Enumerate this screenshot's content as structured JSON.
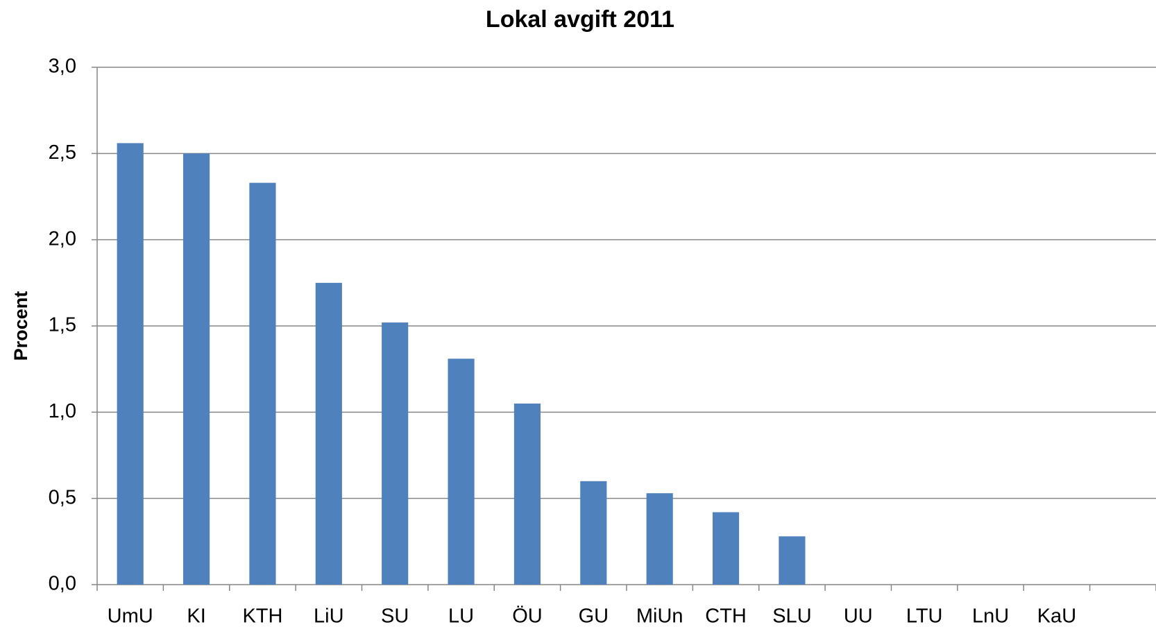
{
  "chart_data": {
    "type": "bar",
    "title": "Lokal avgift 2011",
    "y_label": "Procent",
    "categories": [
      "UmU",
      "KI",
      "KTH",
      "LiU",
      "SU",
      "LU",
      "ÖU",
      "GU",
      "MiUn",
      "CTH",
      "SLU",
      "UU",
      "LTU",
      "LnU",
      "KaU",
      null
    ],
    "values": [
      2.56,
      2.5,
      2.33,
      1.75,
      1.52,
      1.31,
      1.05,
      0.6,
      0.53,
      0.42,
      0.28,
      0,
      0,
      0,
      0,
      null
    ],
    "color": "#4f81bd",
    "ylim": [
      0,
      3
    ],
    "yticks": [
      {
        "value": 0,
        "label": "0,0"
      },
      {
        "value": 0.5,
        "label": "0,5"
      },
      {
        "value": 1,
        "label": "1,0"
      },
      {
        "value": 1.5,
        "label": "1,5"
      },
      {
        "value": 2,
        "label": "2,0"
      },
      {
        "value": 2.5,
        "label": "2,5"
      },
      {
        "value": 3,
        "label": "3,0"
      }
    ],
    "grid": true
  }
}
